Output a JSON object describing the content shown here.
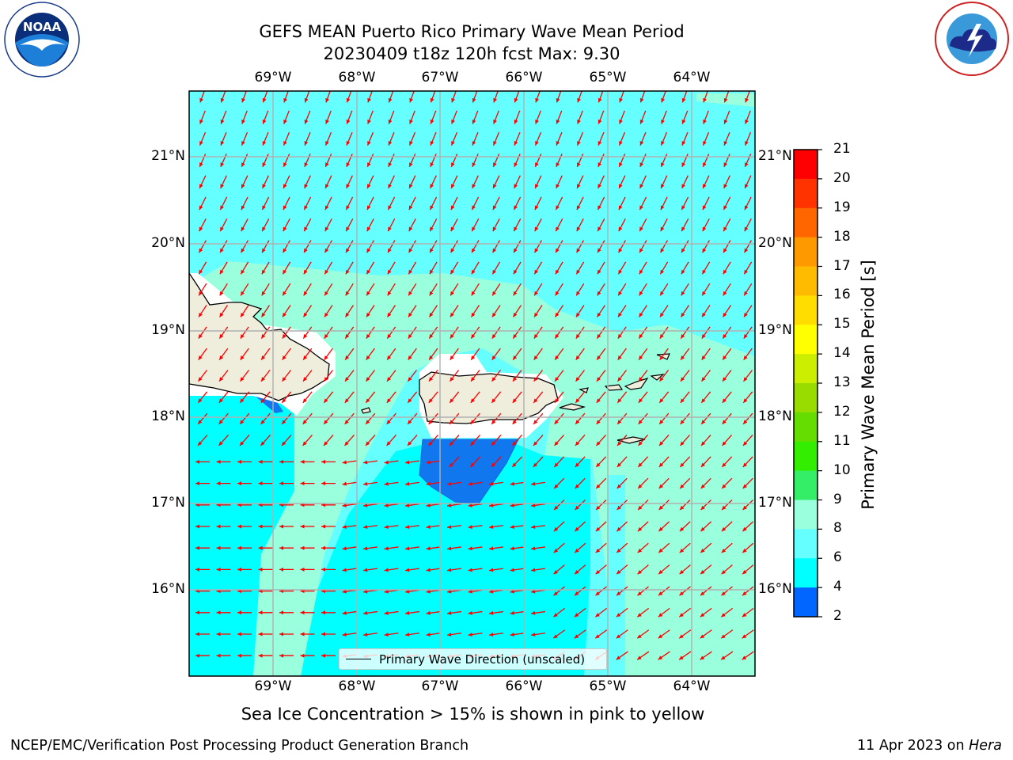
{
  "title": {
    "line1": "GEFS MEAN Puerto Rico Primary Wave Mean Period",
    "line2": "20230409 t18z 120h fcst   Max: 9.30"
  },
  "logos": {
    "left": {
      "icon": "noaa-logo",
      "text": "NOAA",
      "ring_text": "NATIONAL OCEANIC AND ATMOSPHERIC ADMINISTRATION · U.S. DEPARTMENT OF COMMERCE"
    },
    "right": {
      "icon": "nws-logo",
      "ring_text": "NATIONAL WEATHER SERVICE"
    }
  },
  "map": {
    "lat_labels": [
      "21°N",
      "20°N",
      "19°N",
      "18°N",
      "17°N",
      "16°N"
    ],
    "lon_labels": [
      "69°W",
      "68°W",
      "67°W",
      "66°W",
      "65°W",
      "64°W"
    ],
    "legend_label": "Primary Wave Direction (unscaled)",
    "arrow_color": "#ff0000",
    "land_color": "#efeddc"
  },
  "colorbar": {
    "title": "Primary Wave Mean Period [s]",
    "ticks": [
      "21",
      "20",
      "19",
      "18",
      "17",
      "16",
      "15",
      "14",
      "13",
      "12",
      "11",
      "10",
      "9",
      "8",
      "6",
      "4",
      "2"
    ],
    "colors": [
      "#ff0000",
      "#ff3300",
      "#ff6600",
      "#ff9900",
      "#ffbb00",
      "#ffdd00",
      "#ffff00",
      "#ccee00",
      "#99dd00",
      "#66dd00",
      "#33ee00",
      "#33ee66",
      "#99ffdd",
      "#66ffff",
      "#00ffff",
      "#0066ff",
      "#0000ff"
    ]
  },
  "footer": {
    "note": "Sea Ice Concentration > 15% is shown in pink to yellow",
    "credit": "NCEP/EMC/Verification Post Processing Product Generation Branch",
    "date_prefix": "11 Apr 2023 on ",
    "machine": "Hera"
  }
}
